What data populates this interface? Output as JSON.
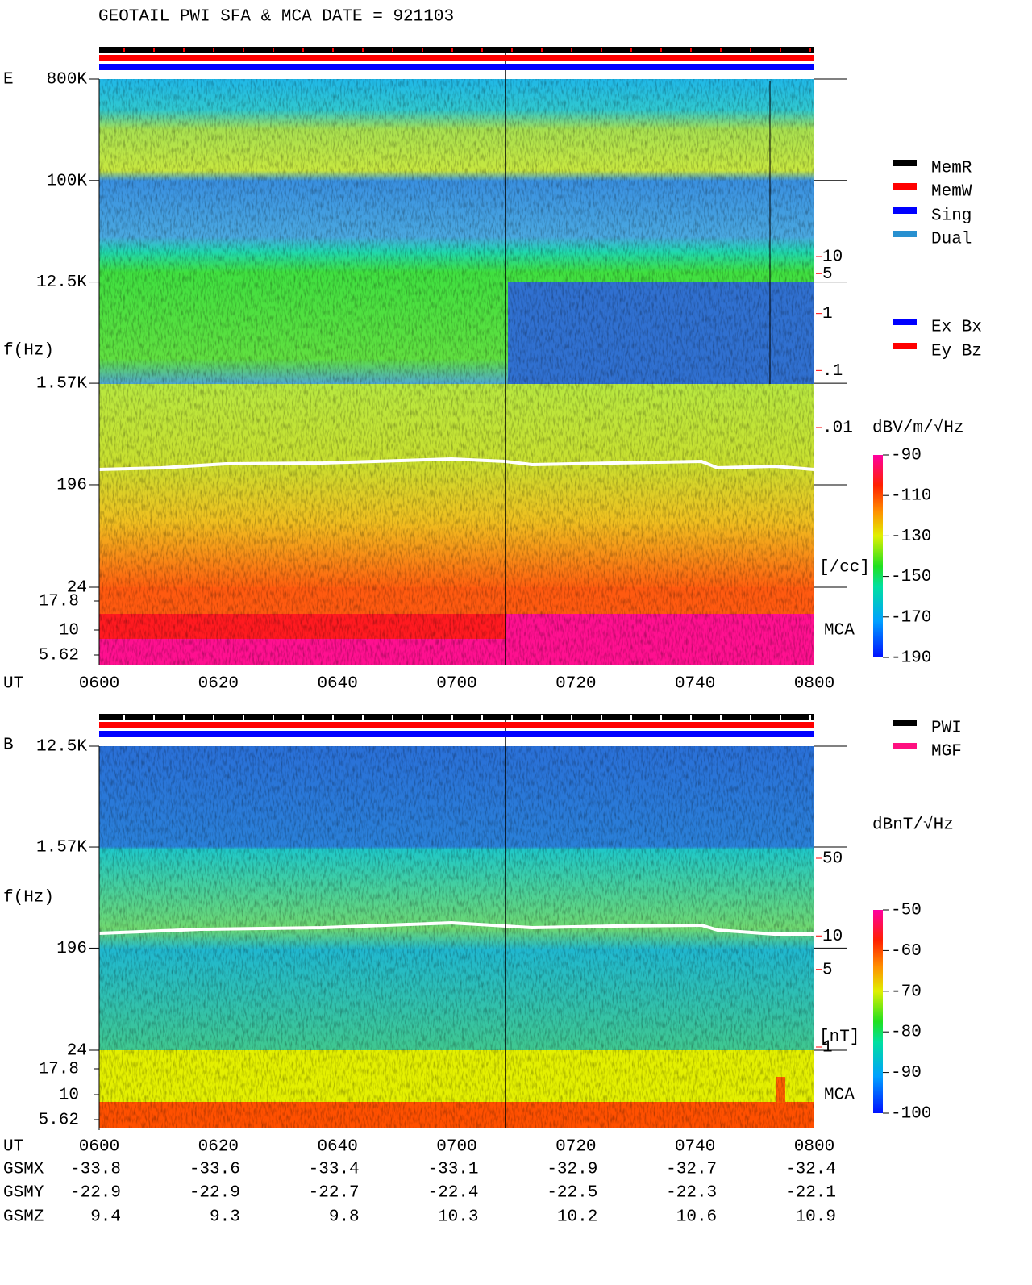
{
  "title": "GEOTAIL  PWI SFA & MCA   DATE = 921103",
  "chart_data": [
    {
      "type": "spectrogram",
      "panel_label": "E",
      "y_label": "f(Hz)",
      "x_label": "UT",
      "categories": [
        "0600",
        "0620",
        "0640",
        "0700",
        "0720",
        "0740",
        "0800"
      ],
      "log_scale": true,
      "ylim": [
        24,
        800000
      ],
      "yticks": [
        {
          "value": 800000,
          "label": "800K"
        },
        {
          "value": 100000,
          "label": "100K"
        },
        {
          "value": 12500,
          "label": "12.5K"
        },
        {
          "value": 1570,
          "label": "1.57K"
        },
        196,
        24
      ],
      "mca_label": "MCA",
      "mca_ticks": [
        17.8,
        10,
        5.62
      ],
      "y2lim": [
        0.01,
        10
      ],
      "y2ticks": [
        10,
        5,
        1,
        {
          "value": 0.1,
          "label": ".1"
        },
        {
          "value": 0.01,
          "label": ".01"
        }
      ],
      "y2_label": "[/cc]",
      "y2_color": "#ff0000",
      "colorbar_label": "dBV/m/√Hz",
      "clim": [
        -190,
        -90
      ],
      "cticks": [
        -90,
        -110,
        -130,
        -150,
        -170,
        -190
      ],
      "legend": [
        {
          "name": "MemR",
          "color": "#000000"
        },
        {
          "name": "MemW",
          "color": "#ff0000"
        },
        {
          "name": "Sing",
          "color": "#0000ff"
        },
        {
          "name": "Dual",
          "color": "#2890d0"
        }
      ],
      "legend2": [
        {
          "name": "Ex Bx",
          "color": "#0000ff"
        },
        {
          "name": "Ey Bz",
          "color": "#ff0000"
        }
      ]
    },
    {
      "type": "spectrogram",
      "panel_label": "B",
      "y_label": "f(Hz)",
      "x_label": "UT",
      "categories": [
        "0600",
        "0620",
        "0640",
        "0700",
        "0720",
        "0740",
        "0800"
      ],
      "log_scale": true,
      "ylim": [
        24,
        12500
      ],
      "yticks": [
        {
          "value": 12500,
          "label": "12.5K"
        },
        {
          "value": 1570,
          "label": "1.57K"
        },
        196,
        24
      ],
      "mca_label": "MCA",
      "mca_ticks": [
        17.8,
        10,
        5.62
      ],
      "y2lim": [
        1,
        50
      ],
      "y2ticks": [
        50,
        10,
        5,
        1
      ],
      "y2_label": "[nT]",
      "y2_color": "#ff0000",
      "colorbar_label": "dBnT/√Hz",
      "clim": [
        -100,
        -50
      ],
      "cticks": [
        -50,
        -60,
        -70,
        -80,
        -90,
        -100
      ],
      "legend": [
        {
          "name": "PWI",
          "color": "#000000"
        },
        {
          "name": "MGF",
          "color": "#ff1080"
        }
      ]
    }
  ],
  "orbit": {
    "rows": [
      {
        "name": "GSMX",
        "values": [
          -33.8,
          -33.6,
          -33.4,
          -33.1,
          -32.9,
          -32.7,
          -32.4
        ]
      },
      {
        "name": "GSMY",
        "values": [
          -22.9,
          -22.9,
          -22.7,
          -22.4,
          -22.5,
          -22.3,
          -22.1
        ]
      },
      {
        "name": "GSMZ",
        "values": [
          9.4,
          9.3,
          9.8,
          10.3,
          10.2,
          10.6,
          10.9
        ]
      }
    ]
  }
}
